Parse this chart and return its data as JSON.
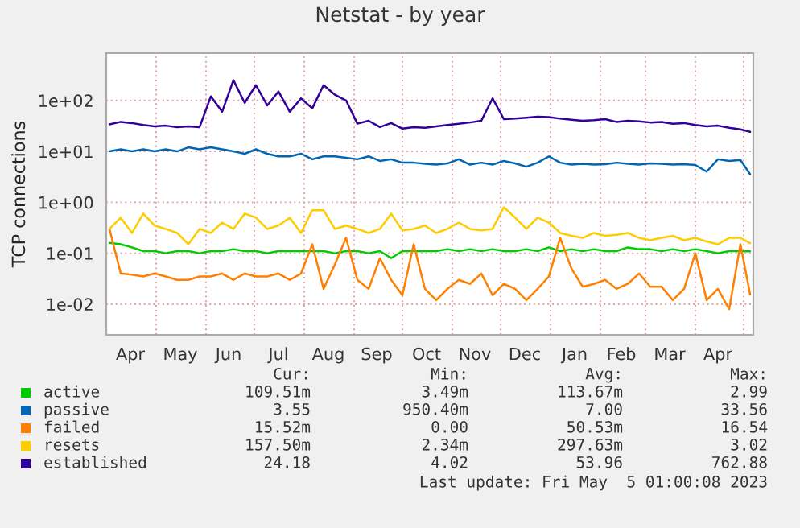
{
  "chart_data": {
    "type": "line",
    "title": "Netstat - by year",
    "ylabel": "TCP connections",
    "x": [
      "2022-04-02",
      "2022-04-09",
      "2022-04-16",
      "2022-04-23",
      "2022-04-30",
      "2022-05-07",
      "2022-05-14",
      "2022-05-21",
      "2022-05-28",
      "2022-06-04",
      "2022-06-11",
      "2022-06-18",
      "2022-06-25",
      "2022-07-02",
      "2022-07-09",
      "2022-07-16",
      "2022-07-23",
      "2022-07-30",
      "2022-08-06",
      "2022-08-13",
      "2022-08-20",
      "2022-08-27",
      "2022-09-03",
      "2022-09-10",
      "2022-09-17",
      "2022-09-24",
      "2022-10-01",
      "2022-10-08",
      "2022-10-15",
      "2022-10-22",
      "2022-10-29",
      "2022-11-05",
      "2022-11-12",
      "2022-11-19",
      "2022-11-26",
      "2022-12-03",
      "2022-12-10",
      "2022-12-17",
      "2022-12-24",
      "2022-12-31",
      "2023-01-07",
      "2023-01-14",
      "2023-01-21",
      "2023-01-28",
      "2023-02-04",
      "2023-02-11",
      "2023-02-18",
      "2023-02-25",
      "2023-03-04",
      "2023-03-11",
      "2023-03-18",
      "2023-03-25",
      "2023-04-01",
      "2023-04-08",
      "2023-04-15",
      "2023-04-22",
      "2023-04-29",
      "2023-05-05"
    ],
    "series": [
      {
        "name": "active",
        "color": "#00cc00",
        "values": [
          0.16,
          0.15,
          0.13,
          0.11,
          0.11,
          0.1,
          0.11,
          0.11,
          0.1,
          0.11,
          0.11,
          0.12,
          0.11,
          0.11,
          0.1,
          0.11,
          0.11,
          0.11,
          0.11,
          0.11,
          0.1,
          0.11,
          0.11,
          0.1,
          0.11,
          0.08,
          0.11,
          0.11,
          0.11,
          0.11,
          0.12,
          0.11,
          0.12,
          0.11,
          0.12,
          0.11,
          0.11,
          0.12,
          0.11,
          0.13,
          0.11,
          0.12,
          0.11,
          0.12,
          0.11,
          0.11,
          0.13,
          0.12,
          0.12,
          0.11,
          0.12,
          0.11,
          0.12,
          0.11,
          0.1,
          0.11,
          0.11,
          0.1095
        ]
      },
      {
        "name": "passive",
        "color": "#0066b3",
        "values": [
          10,
          11,
          10,
          11,
          10,
          11,
          10,
          12,
          11,
          12,
          11,
          10,
          9,
          11,
          9,
          8,
          8,
          9,
          7,
          8,
          8,
          7.5,
          7,
          8,
          6.5,
          7,
          6,
          6,
          5.7,
          5.5,
          5.8,
          7,
          5.5,
          6,
          5.5,
          6.5,
          5.8,
          5,
          6,
          8,
          6,
          5.5,
          5.7,
          5.5,
          5.6,
          6,
          5.7,
          5.5,
          5.8,
          5.7,
          5.5,
          5.6,
          5.4,
          4,
          7,
          6.5,
          6.8,
          3.55
        ]
      },
      {
        "name": "failed",
        "color": "#ff8000",
        "values": [
          0.3,
          0.04,
          0.038,
          0.035,
          0.04,
          0.035,
          0.03,
          0.03,
          0.035,
          0.035,
          0.04,
          0.03,
          0.04,
          0.035,
          0.035,
          0.04,
          0.03,
          0.04,
          0.15,
          0.02,
          0.06,
          0.2,
          0.03,
          0.02,
          0.08,
          0.03,
          0.015,
          0.15,
          0.02,
          0.012,
          0.02,
          0.03,
          0.025,
          0.04,
          0.015,
          0.025,
          0.02,
          0.012,
          0.02,
          0.035,
          0.2,
          0.05,
          0.022,
          0.025,
          0.03,
          0.02,
          0.025,
          0.04,
          0.022,
          0.022,
          0.012,
          0.02,
          0.1,
          0.012,
          0.02,
          0.008,
          0.15,
          0.01552
        ]
      },
      {
        "name": "resets",
        "color": "#ffcc00",
        "values": [
          0.3,
          0.5,
          0.25,
          0.6,
          0.35,
          0.3,
          0.25,
          0.15,
          0.3,
          0.25,
          0.4,
          0.3,
          0.6,
          0.5,
          0.3,
          0.35,
          0.5,
          0.25,
          0.7,
          0.7,
          0.3,
          0.35,
          0.3,
          0.25,
          0.3,
          0.6,
          0.28,
          0.3,
          0.35,
          0.25,
          0.3,
          0.4,
          0.3,
          0.28,
          0.3,
          0.8,
          0.5,
          0.3,
          0.5,
          0.4,
          0.25,
          0.22,
          0.2,
          0.25,
          0.22,
          0.23,
          0.25,
          0.2,
          0.18,
          0.2,
          0.22,
          0.18,
          0.2,
          0.17,
          0.15,
          0.2,
          0.2,
          0.1575
        ]
      },
      {
        "name": "established",
        "color": "#330099",
        "values": [
          34,
          38,
          36,
          33,
          31,
          32,
          30,
          31,
          30,
          120,
          60,
          250,
          90,
          200,
          80,
          150,
          60,
          110,
          70,
          200,
          130,
          100,
          35,
          40,
          30,
          36,
          28,
          30,
          29,
          31,
          33,
          35,
          37,
          40,
          110,
          43,
          44,
          46,
          48,
          47,
          44,
          42,
          40,
          41,
          43,
          38,
          40,
          39,
          37,
          38,
          35,
          36,
          33,
          31,
          32,
          29,
          27,
          24.18
        ]
      }
    ],
    "log": true,
    "ylim": [
      0.0025,
      850
    ],
    "yticks": [
      {
        "value": 0.01,
        "label": "1e-02"
      },
      {
        "value": 0.1,
        "label": "1e-01"
      },
      {
        "value": 1,
        "label": "1e+00"
      },
      {
        "value": 10,
        "label": "1e+01"
      },
      {
        "value": 100,
        "label": "1e+02"
      }
    ],
    "xlim": [
      "2022-03-31",
      "2023-05-07"
    ],
    "xticks": [
      {
        "value": "2022-04-15",
        "label": "Apr"
      },
      {
        "value": "2022-05-01",
        "label": null
      },
      {
        "value": "2022-05-16",
        "label": "May"
      },
      {
        "value": "2022-06-01",
        "label": null
      },
      {
        "value": "2022-06-15",
        "label": "Jun"
      },
      {
        "value": "2022-07-01",
        "label": null
      },
      {
        "value": "2022-07-16",
        "label": "Jul"
      },
      {
        "value": "2022-08-01",
        "label": null
      },
      {
        "value": "2022-08-16",
        "label": "Aug"
      },
      {
        "value": "2022-09-01",
        "label": null
      },
      {
        "value": "2022-09-15",
        "label": "Sep"
      },
      {
        "value": "2022-10-01",
        "label": null
      },
      {
        "value": "2022-10-16",
        "label": "Oct"
      },
      {
        "value": "2022-11-01",
        "label": null
      },
      {
        "value": "2022-11-15",
        "label": "Nov"
      },
      {
        "value": "2022-12-01",
        "label": null
      },
      {
        "value": "2022-12-16",
        "label": "Dec"
      },
      {
        "value": "2023-01-01",
        "label": null
      },
      {
        "value": "2023-01-16",
        "label": "Jan"
      },
      {
        "value": "2023-02-01",
        "label": null
      },
      {
        "value": "2023-02-14",
        "label": "Feb"
      },
      {
        "value": "2023-03-01",
        "label": null
      },
      {
        "value": "2023-03-16",
        "label": "Mar"
      },
      {
        "value": "2023-04-01",
        "label": null
      },
      {
        "value": "2023-04-15",
        "label": "Apr"
      },
      {
        "value": "2023-05-01",
        "label": null
      }
    ],
    "grid": true,
    "legend": "bottom",
    "marker": "none",
    "line_style": "solid",
    "annotations": [
      "Cur:",
      "Min:",
      "Avg:",
      "Max:",
      "109.51m",
      "3.49m",
      "113.67m",
      "2.99",
      "3.55",
      "950.40m",
      "7.00",
      "33.56",
      "15.52m",
      "0.00",
      "50.53m",
      "16.54",
      "157.50m",
      "2.34m",
      "297.63m",
      "3.02",
      "24.18",
      "4.02",
      "53.96",
      "762.88",
      "Last update: Fri May  5 01:00:08 2023"
    ]
  }
}
